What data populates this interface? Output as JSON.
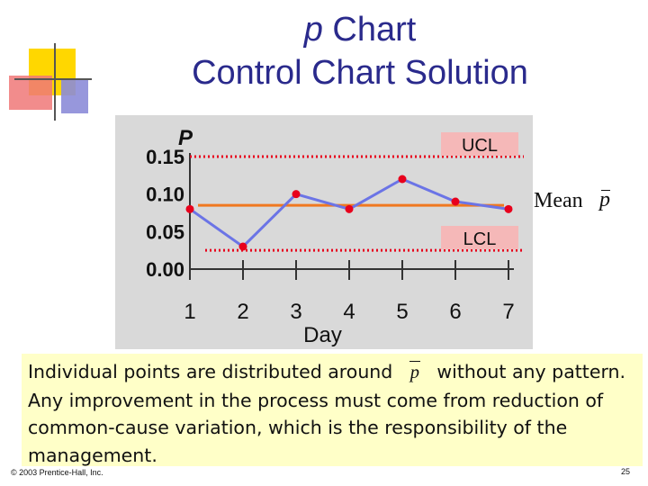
{
  "slide": {
    "title_symbol": "p",
    "title_rest": "Chart",
    "subtitle": "Control Chart Solution",
    "body_before": "Individual points are distributed around",
    "body_symbol": "p",
    "body_after": "without any pattern. Any improvement in the process must come from reduction of common-cause variation, which is the responsibility of the management.",
    "copyright": "© 2003 Prentice-Hall, Inc.",
    "page_number": "25",
    "mean_label": "Mean",
    "mean_symbol": "p"
  },
  "colors": {
    "title": "#2a2a8c",
    "panel": "#d9d9d9",
    "series_line": "#6b74e6",
    "points": "#e8001c",
    "mean_line": "#f07820",
    "control_limit": "#e8001c",
    "caption_bg": "#ffffc8"
  },
  "chart_data": {
    "type": "line",
    "title": "",
    "xlabel": "Day",
    "ylabel": "P",
    "x": [
      1,
      2,
      3,
      4,
      5,
      6,
      7
    ],
    "ylim": [
      0,
      0.15
    ],
    "y_ticks": [
      "0.00",
      "0.05",
      "0.10",
      "0.15"
    ],
    "series": [
      {
        "values": [
          0.08,
          0.03,
          0.1,
          0.08,
          0.12,
          0.09,
          0.08
        ]
      }
    ],
    "ucl": {
      "label": "UCL",
      "value": 0.15
    },
    "lcl": {
      "label": "LCL",
      "value": 0.025
    },
    "mean": {
      "value": 0.085
    }
  }
}
